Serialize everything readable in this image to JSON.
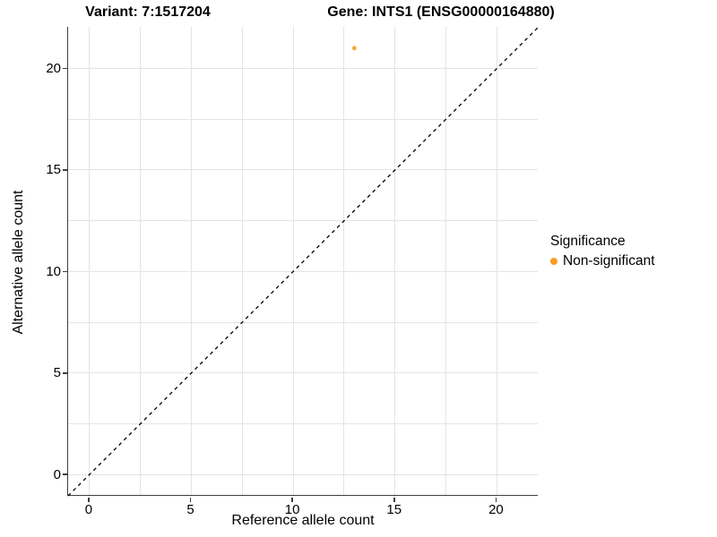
{
  "titles": {
    "variant": "Variant: 7:1517204",
    "gene": "Gene: INTS1 (ENSG00000164880)"
  },
  "chart_data": {
    "type": "scatter",
    "title": "Variant: 7:1517204   Gene: INTS1 (ENSG00000164880)",
    "xlabel": "Reference allele count",
    "ylabel": "Alternative allele count",
    "xlim": [
      -1.05,
      22.05
    ],
    "ylim": [
      -1.05,
      22.05
    ],
    "x_ticks": [
      0,
      5,
      10,
      15,
      20
    ],
    "y_ticks": [
      0,
      5,
      10,
      15,
      20
    ],
    "gridlines": [
      0,
      2.5,
      5,
      7.5,
      10,
      12.5,
      15,
      17.5,
      20
    ],
    "grid": true,
    "series": [
      {
        "name": "Non-significant",
        "points": [
          {
            "x": 13,
            "y": 21
          }
        ]
      }
    ],
    "identity_line": {
      "type": "dashed",
      "from": [
        -1.05,
        -1.05
      ],
      "to": [
        22.05,
        22.05
      ],
      "meaning": "y = x"
    },
    "legend_position": "right"
  },
  "legend": {
    "title": "Significance",
    "items": [
      {
        "label": "Non-significant",
        "color": "#F99C20"
      }
    ]
  },
  "colors": {
    "point": "#F9A53B",
    "grid": "#e4e4e4",
    "axis": "#3f3f3f",
    "dashed_line": "#000000",
    "text": "#000000"
  }
}
